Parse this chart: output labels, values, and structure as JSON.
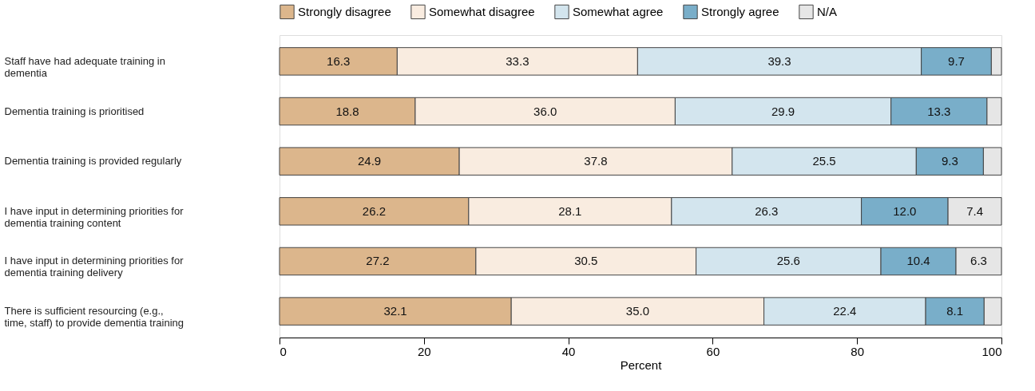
{
  "chart_data": {
    "type": "bar",
    "orientation": "horizontal",
    "stacked": true,
    "xlabel": "Percent",
    "xlim": [
      0,
      100
    ],
    "xticks": [
      0,
      20,
      40,
      60,
      80,
      100
    ],
    "grid": false,
    "legend": "top",
    "categories": [
      "Staff have had adequate training in dementia",
      "Dementia training is prioritised",
      "Dementia training is provided regularly",
      "I have input in determining priorities for dementia training content",
      "I have input in determining priorities for dementia training delivery",
      "There is sufficient resourcing (e.g., time, staff) to provide dementia training"
    ],
    "series": [
      {
        "name": "Strongly disagree",
        "color": "#dcb68c",
        "values": [
          16.3,
          18.8,
          24.9,
          26.2,
          27.2,
          32.1
        ],
        "value_labels": [
          "16.3",
          "18.8",
          "24.9",
          "26.2",
          "27.2",
          "32.1"
        ]
      },
      {
        "name": "Somewhat disagree",
        "color": "#f9ece0",
        "values": [
          33.3,
          36.0,
          37.8,
          28.1,
          30.5,
          35.0
        ],
        "value_labels": [
          "33.3",
          "36.0",
          "37.8",
          "28.1",
          "30.5",
          "35.0"
        ]
      },
      {
        "name": "Somewhat agree",
        "color": "#d3e5ee",
        "values": [
          39.3,
          29.9,
          25.5,
          26.3,
          25.6,
          22.4
        ],
        "value_labels": [
          "39.3",
          "29.9",
          "25.5",
          "26.3",
          "25.6",
          "22.4"
        ]
      },
      {
        "name": "Strongly agree",
        "color": "#79aec9",
        "values": [
          9.7,
          13.3,
          9.3,
          12.0,
          10.4,
          8.1
        ],
        "value_labels": [
          "9.7",
          "13.3",
          "9.3",
          "12.0",
          "10.4",
          "8.1"
        ]
      },
      {
        "name": "N/A",
        "color": "#e6e6e6",
        "values": [
          1.4,
          2.0,
          2.5,
          7.4,
          6.3,
          2.4
        ],
        "value_labels": [
          null,
          null,
          null,
          "7.4",
          "6.3",
          null
        ]
      }
    ]
  }
}
